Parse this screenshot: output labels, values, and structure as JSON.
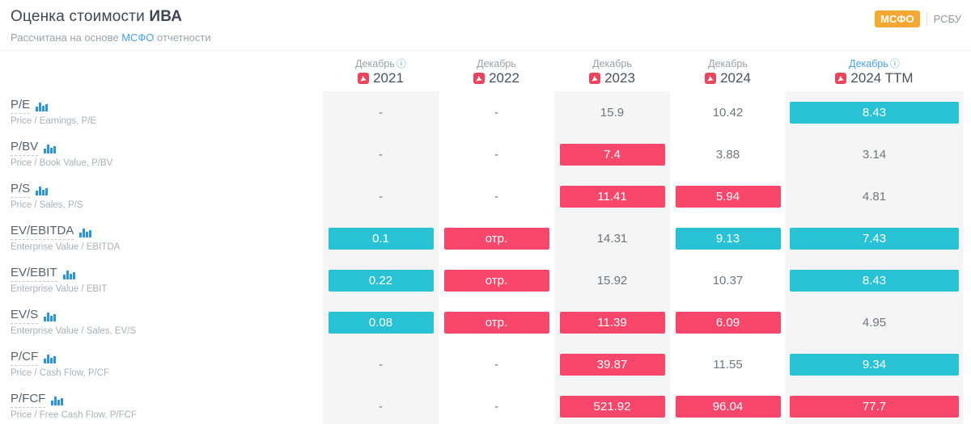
{
  "header": {
    "title_prefix": "Оценка стоимости",
    "ticker": "ИВА",
    "subtitle_prefix": "Рассчитана на основе",
    "subtitle_link": "МСФО",
    "subtitle_suffix": "отчетности"
  },
  "toggle": {
    "active": "МСФО",
    "inactive": "РСБУ"
  },
  "icons": {
    "info_glyph": "ⓘ",
    "pdf_icon": "adobe-pdf",
    "chart_icon": "bar-chart"
  },
  "colors": {
    "good": "#29c2d4",
    "bad": "#f9466b",
    "stripe": "#f5f5f6",
    "msfo_badge_bg": "#f7a832",
    "link_blue": "#4aa0e8",
    "pdf_red": "#e8455e",
    "chart_icon_blue": "#2d96d8"
  },
  "table": {
    "columns": [
      {
        "month": "Декабрь",
        "info": true,
        "month_link": false,
        "year": "2021"
      },
      {
        "month": "Декабрь",
        "info": false,
        "month_link": false,
        "year": "2022"
      },
      {
        "month": "Декабрь",
        "info": false,
        "month_link": false,
        "year": "2023"
      },
      {
        "month": "Декабрь",
        "info": false,
        "month_link": false,
        "year": "2024"
      },
      {
        "month": "Декабрь",
        "info": true,
        "month_link": true,
        "year": "2024 TTM"
      }
    ],
    "striped_columns": [
      0,
      2,
      4
    ],
    "rows": [
      {
        "label": "P/E",
        "description": "Price / Earnings, P/E",
        "values": [
          {
            "text": "-"
          },
          {
            "text": "-"
          },
          {
            "text": "15.9"
          },
          {
            "text": "10.42"
          },
          {
            "text": "8.43",
            "highlight": "good"
          }
        ]
      },
      {
        "label": "P/BV",
        "description": "Price / Book Value, P/BV",
        "values": [
          {
            "text": "-"
          },
          {
            "text": "-"
          },
          {
            "text": "7.4",
            "highlight": "bad"
          },
          {
            "text": "3.88"
          },
          {
            "text": "3.14"
          }
        ]
      },
      {
        "label": "P/S",
        "description": "Price / Sales, P/S",
        "values": [
          {
            "text": "-"
          },
          {
            "text": "-"
          },
          {
            "text": "11.41",
            "highlight": "bad"
          },
          {
            "text": "5.94",
            "highlight": "bad"
          },
          {
            "text": "4.81"
          }
        ]
      },
      {
        "label": "EV/EBITDA",
        "description": "Enterprise Value / EBITDA",
        "values": [
          {
            "text": "0.1",
            "highlight": "good"
          },
          {
            "text": "отр.",
            "highlight": "bad"
          },
          {
            "text": "14.31"
          },
          {
            "text": "9.13",
            "highlight": "good"
          },
          {
            "text": "7.43",
            "highlight": "good"
          }
        ]
      },
      {
        "label": "EV/EBIT",
        "description": "Enterprise Value / EBIT",
        "values": [
          {
            "text": "0.22",
            "highlight": "good"
          },
          {
            "text": "отр.",
            "highlight": "bad"
          },
          {
            "text": "15.92"
          },
          {
            "text": "10.37"
          },
          {
            "text": "8.43",
            "highlight": "good"
          }
        ]
      },
      {
        "label": "EV/S",
        "description": "Enterprise Value / Sales, EV/S",
        "values": [
          {
            "text": "0.08",
            "highlight": "good"
          },
          {
            "text": "отр.",
            "highlight": "bad"
          },
          {
            "text": "11.39",
            "highlight": "bad"
          },
          {
            "text": "6.09",
            "highlight": "bad"
          },
          {
            "text": "4.95"
          }
        ]
      },
      {
        "label": "P/CF",
        "description": "Price / Cash Flow, P/CF",
        "values": [
          {
            "text": "-"
          },
          {
            "text": "-"
          },
          {
            "text": "39.87",
            "highlight": "bad"
          },
          {
            "text": "11.55"
          },
          {
            "text": "9.34",
            "highlight": "good"
          }
        ]
      },
      {
        "label": "P/FCF",
        "description": "Price / Free Cash Flow, P/FCF",
        "values": [
          {
            "text": "-"
          },
          {
            "text": "-"
          },
          {
            "text": "521.92",
            "highlight": "bad"
          },
          {
            "text": "96.04",
            "highlight": "bad"
          },
          {
            "text": "77.7",
            "highlight": "bad"
          }
        ]
      }
    ]
  }
}
